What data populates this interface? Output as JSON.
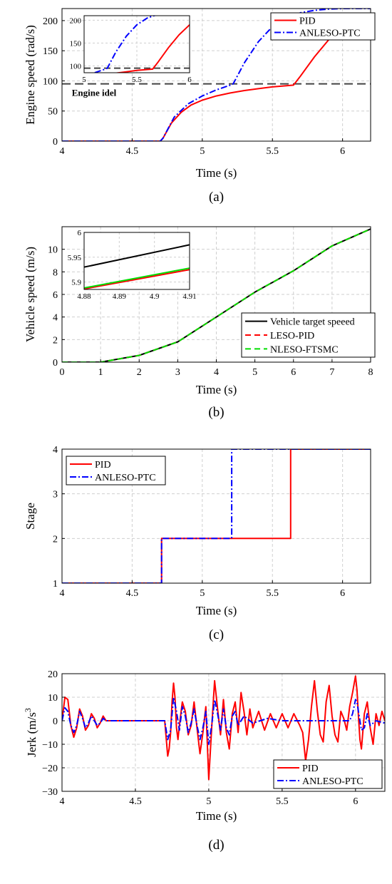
{
  "chart_data": [
    {
      "type": "line",
      "panel_caption": "(a)",
      "title": "",
      "xlabel": "Time (s)",
      "ylabel": "Engine speed (rad/s)",
      "xlim": [
        4,
        6.2
      ],
      "ylim": [
        0,
        220
      ],
      "xticks": [
        4,
        4.5,
        5,
        5.5,
        6
      ],
      "yticks": [
        0,
        50,
        100,
        150,
        200
      ],
      "xtick_labels": [
        "4",
        "4.5",
        "5",
        "5.5",
        "6"
      ],
      "ytick_labels": [
        "0",
        "50",
        "100",
        "150",
        "200"
      ],
      "grid": true,
      "legend_position": "top-right",
      "annotations": [
        {
          "text": "Engine idel",
          "x": 4.07,
          "y": 75
        }
      ],
      "reference_lines": [
        {
          "type": "hline",
          "y": 95,
          "style": "dashed",
          "color": "#444444"
        }
      ],
      "series": [
        {
          "name": "PID",
          "color": "#ff0000",
          "style": "solid",
          "x": [
            4,
            4.7,
            4.72,
            4.78,
            4.85,
            4.92,
            5.0,
            5.1,
            5.2,
            5.3,
            5.4,
            5.5,
            5.6,
            5.65,
            5.7,
            5.8,
            5.9,
            6.0,
            6.1,
            6.2
          ],
          "values": [
            0,
            0,
            5,
            30,
            48,
            60,
            68,
            75,
            80,
            84,
            87,
            90,
            92,
            93,
            108,
            140,
            168,
            190,
            200,
            205
          ]
        },
        {
          "name": "ANLESO-PTC",
          "color": "#0000ff",
          "style": "dashdot",
          "x": [
            4,
            4.7,
            4.72,
            4.8,
            4.9,
            5.0,
            5.1,
            5.2,
            5.22,
            5.3,
            5.4,
            5.5,
            5.6,
            5.7,
            5.8,
            5.9,
            6.0,
            6.1,
            6.2
          ],
          "values": [
            0,
            0,
            5,
            40,
            62,
            75,
            85,
            93,
            95,
            130,
            165,
            190,
            205,
            213,
            217,
            219,
            220,
            220,
            220
          ]
        }
      ],
      "inset": {
        "xlim": [
          5,
          6
        ],
        "ylim": [
          85,
          210
        ],
        "xticks": [
          5,
          5.5,
          6
        ],
        "yticks": [
          100,
          150,
          200
        ],
        "xtick_labels": [
          "5",
          "5.5",
          "6"
        ],
        "ytick_labels": [
          "100",
          "150",
          "200"
        ]
      }
    },
    {
      "type": "line",
      "panel_caption": "(b)",
      "title": "",
      "xlabel": "Time (s)",
      "ylabel": "Vehicle speed (m/s)",
      "xlim": [
        0,
        8
      ],
      "ylim": [
        0,
        12
      ],
      "xticks": [
        0,
        1,
        2,
        3,
        4,
        5,
        6,
        7,
        8
      ],
      "yticks": [
        0,
        2,
        4,
        6,
        8,
        10
      ],
      "xtick_labels": [
        "0",
        "1",
        "2",
        "3",
        "4",
        "5",
        "6",
        "7",
        "8"
      ],
      "ytick_labels": [
        "0",
        "2",
        "4",
        "6",
        "8",
        "10"
      ],
      "grid": true,
      "legend_position": "bottom-right",
      "series": [
        {
          "name": "Vehicle target speeed",
          "color": "#000000",
          "style": "solid",
          "x": [
            0,
            1,
            2,
            3,
            4,
            5,
            6,
            7,
            8
          ],
          "values": [
            0,
            0,
            0.6,
            1.8,
            4.0,
            6.2,
            8.1,
            10.3,
            11.8
          ]
        },
        {
          "name": "LESO-PID",
          "color": "#ff0000",
          "style": "dashed",
          "x": [
            0,
            1,
            2,
            3,
            4,
            5,
            6,
            7,
            8
          ],
          "values": [
            0,
            0,
            0.6,
            1.8,
            4.0,
            6.2,
            8.1,
            10.3,
            11.8
          ]
        },
        {
          "name": "NLESO-FTSMC",
          "color": "#00dd00",
          "style": "dashed",
          "x": [
            0,
            1,
            2,
            3,
            4,
            5,
            6,
            7,
            8
          ],
          "values": [
            0,
            0,
            0.6,
            1.8,
            4.0,
            6.2,
            8.1,
            10.3,
            11.8
          ]
        }
      ],
      "inset": {
        "xlim": [
          4.88,
          4.91
        ],
        "ylim": [
          5.885,
          6.0
        ],
        "xticks": [
          4.88,
          4.89,
          4.9,
          4.91
        ],
        "yticks": [
          5.9,
          5.95,
          6.0
        ],
        "xtick_labels": [
          "4.88",
          "4.89",
          "4.9",
          "4.91"
        ],
        "ytick_labels": [
          "5.9",
          "5.95",
          "6"
        ],
        "series": [
          {
            "color": "#000000",
            "x": [
              4.88,
              4.91
            ],
            "values": [
              5.93,
              5.975
            ]
          },
          {
            "color": "#ff0000",
            "x": [
              4.88,
              4.91
            ],
            "values": [
              5.886,
              5.925
            ]
          },
          {
            "color": "#00dd00",
            "x": [
              4.88,
              4.91
            ],
            "values": [
              5.888,
              5.928
            ]
          }
        ]
      }
    },
    {
      "type": "line",
      "panel_caption": "(c)",
      "title": "",
      "xlabel": "Time (s)",
      "ylabel": "Stage",
      "xlim": [
        4,
        6.2
      ],
      "ylim": [
        1,
        4
      ],
      "xticks": [
        4,
        4.5,
        5,
        5.5,
        6
      ],
      "yticks": [
        1,
        2,
        3,
        4
      ],
      "xtick_labels": [
        "4",
        "4.5",
        "5",
        "5.5",
        "6"
      ],
      "ytick_labels": [
        "1",
        "2",
        "3",
        "4"
      ],
      "grid": true,
      "legend_position": "top-left",
      "series": [
        {
          "name": "PID",
          "color": "#ff0000",
          "style": "solid",
          "x": [
            4,
            4.71,
            4.71,
            5.63,
            5.63,
            6.2
          ],
          "values": [
            1,
            1,
            2,
            2,
            4,
            4
          ]
        },
        {
          "name": "ANLESO-PTC",
          "color": "#0000ff",
          "style": "dashdot",
          "x": [
            4,
            4.71,
            4.71,
            5.21,
            5.21,
            6.2
          ],
          "values": [
            1,
            1,
            2,
            2,
            4,
            4
          ]
        }
      ]
    },
    {
      "type": "line",
      "panel_caption": "(d)",
      "title": "",
      "xlabel": "Time (s)",
      "ylabel": "Jerk (m/s",
      "ylabel_sup": "3",
      "xlim": [
        4,
        6.2
      ],
      "ylim": [
        -30,
        20
      ],
      "xticks": [
        4,
        4.5,
        5,
        5.5,
        6
      ],
      "yticks": [
        -30,
        -20,
        -10,
        0,
        10,
        20
      ],
      "xtick_labels": [
        "4",
        "4.5",
        "5",
        "5.5",
        "6"
      ],
      "ytick_labels": [
        "−30",
        "−20",
        "−10",
        "0",
        "10",
        "20"
      ],
      "grid": true,
      "legend_position": "bottom-right",
      "series": [
        {
          "name": "PID",
          "color": "#ff0000",
          "style": "solid",
          "x": [
            4.0,
            4.02,
            4.04,
            4.06,
            4.08,
            4.1,
            4.12,
            4.14,
            4.16,
            4.18,
            4.2,
            4.22,
            4.24,
            4.26,
            4.28,
            4.3,
            4.34,
            4.4,
            4.5,
            4.6,
            4.7,
            4.72,
            4.73,
            4.74,
            4.75,
            4.76,
            4.77,
            4.78,
            4.79,
            4.8,
            4.82,
            4.84,
            4.86,
            4.88,
            4.9,
            4.92,
            4.94,
            4.96,
            4.98,
            5.0,
            5.02,
            5.04,
            5.06,
            5.08,
            5.1,
            5.12,
            5.14,
            5.16,
            5.18,
            5.2,
            5.22,
            5.24,
            5.26,
            5.28,
            5.3,
            5.34,
            5.38,
            5.42,
            5.46,
            5.5,
            5.54,
            5.58,
            5.62,
            5.64,
            5.66,
            5.68,
            5.7,
            5.72,
            5.74,
            5.76,
            5.78,
            5.8,
            5.82,
            5.84,
            5.86,
            5.88,
            5.9,
            5.92,
            5.94,
            5.96,
            5.98,
            6.0,
            6.01,
            6.02,
            6.03,
            6.04,
            6.06,
            6.08,
            6.1,
            6.12,
            6.14,
            6.16,
            6.18,
            6.2
          ],
          "values": [
            0,
            10,
            9,
            -2,
            -7,
            -3,
            5,
            2,
            -4,
            -2,
            3,
            1,
            -3,
            -1,
            2,
            0,
            0,
            0,
            0,
            0,
            0,
            -15,
            -12,
            -5,
            8,
            16,
            10,
            -3,
            -8,
            -2,
            8,
            4,
            -6,
            -2,
            8,
            -3,
            -14,
            -5,
            6,
            -25,
            -3,
            17,
            5,
            -6,
            9,
            -5,
            -12,
            3,
            8,
            -5,
            12,
            4,
            -6,
            5,
            -3,
            4,
            -4,
            3,
            -3,
            3,
            -3,
            3,
            -2,
            -5,
            -17,
            -8,
            6,
            17,
            4,
            -6,
            -9,
            8,
            15,
            2,
            -6,
            -9,
            4,
            1,
            -4,
            6,
            12,
            19,
            13,
            2,
            -8,
            -12,
            3,
            8,
            -3,
            -10,
            3,
            -2,
            4,
            0
          ]
        },
        {
          "name": "ANLESO-PTC",
          "color": "#0000ff",
          "style": "dashdot",
          "x": [
            4.0,
            4.02,
            4.04,
            4.06,
            4.08,
            4.1,
            4.12,
            4.14,
            4.16,
            4.18,
            4.2,
            4.22,
            4.24,
            4.26,
            4.28,
            4.3,
            4.34,
            4.4,
            4.5,
            4.6,
            4.7,
            4.72,
            4.74,
            4.76,
            4.78,
            4.8,
            4.82,
            4.84,
            4.86,
            4.88,
            4.9,
            4.92,
            4.94,
            4.96,
            4.98,
            5.0,
            5.02,
            5.04,
            5.06,
            5.08,
            5.1,
            5.12,
            5.14,
            5.16,
            5.18,
            5.2,
            5.24,
            5.3,
            5.4,
            5.5,
            5.6,
            5.7,
            5.8,
            5.9,
            5.96,
            5.98,
            6.0,
            6.01,
            6.02,
            6.04,
            6.06,
            6.08,
            6.1,
            6.14,
            6.2
          ],
          "values": [
            0,
            5.5,
            4,
            -2,
            -5,
            -2,
            4,
            1,
            -3,
            -1,
            2,
            0,
            -2,
            -1,
            1,
            0,
            0,
            0,
            0,
            0,
            0,
            -8,
            -4,
            10,
            4,
            -4,
            6,
            2,
            -5,
            -1,
            5,
            -2,
            -8,
            -3,
            4,
            -10,
            -2,
            9,
            3,
            -4,
            5,
            -3,
            -6,
            2,
            4,
            -2,
            2,
            -1,
            1,
            0,
            0,
            0,
            0,
            0,
            0,
            3,
            9,
            8,
            4,
            -4,
            -3,
            3,
            -2,
            0,
            -1
          ]
        }
      ]
    }
  ]
}
